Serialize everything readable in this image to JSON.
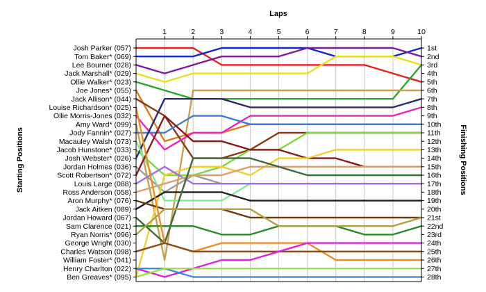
{
  "chart_data": {
    "type": "line",
    "title": "",
    "xlabel": "Laps",
    "ylabel_left": "Starting Positions",
    "ylabel_right": "Finishing Positions",
    "x": [
      1,
      2,
      3,
      4,
      5,
      6,
      7,
      8,
      9,
      10
    ],
    "xlim": [
      0,
      10
    ],
    "ylim": [
      1,
      28
    ],
    "y_reversed": true,
    "grid": "vertical",
    "drivers": [
      "Josh Parker (057)",
      "Tom Baker* (069)",
      "Lee Bourner (028)",
      "Jack Marshall* (029)",
      "Ollie Walker* (023)",
      "Joe Jones* (055)",
      "Jack Allison* (044)",
      "Louise Richardson* (025)",
      "Ollie Morris-Jones (032)",
      "Amy Ward* (099)",
      "Jody Fannin* (027)",
      "Macauley Walsh (073)",
      "Jacob Hunstone* (033)",
      "Josh Webster* (026)",
      "Jordan Holmes (036)",
      "Scott Robertson* (072)",
      "Louis Large (088)",
      "Ross Anderson (058)",
      "Aron Murphy* (076)",
      "Jack Aitken (089)",
      "Jordan Howard (067)",
      "Sam Clarence (021)",
      "Ryan Norris* (096)",
      "George Wright (030)",
      "Charles Watson (098)",
      "William Foster* (041)",
      "Henry Charlton (022)",
      "Ben Greaves* (095)"
    ],
    "finishing_labels": [
      "1st",
      "2nd",
      "3rd",
      "4th",
      "5th",
      "6th",
      "7th",
      "8th",
      "9th",
      "10th",
      "11th",
      "12th",
      "13th",
      "14th",
      "15th",
      "16th",
      "17th",
      "18th",
      "19th",
      "20th",
      "21st",
      "22nd",
      "23rd",
      "24th",
      "25th",
      "26th",
      "27th",
      "28th"
    ],
    "series": [
      {
        "color": "#e8201c",
        "positions": [
          1,
          1,
          1,
          3,
          3,
          3,
          3,
          3,
          3,
          4,
          5
        ]
      },
      {
        "color": "#1428c8",
        "positions": [
          2,
          2,
          2,
          1,
          1,
          1,
          1,
          2,
          2,
          2,
          1
        ]
      },
      {
        "color": "#7a1c9c",
        "positions": [
          3,
          4,
          3,
          2,
          2,
          2,
          1,
          1,
          1,
          1,
          2
        ]
      },
      {
        "color": "#e6e020",
        "positions": [
          4,
          5,
          4,
          4,
          4,
          4,
          4,
          2,
          2,
          2,
          3
        ]
      },
      {
        "color": "#2aa82a",
        "positions": [
          5,
          6,
          7,
          7,
          7,
          7,
          7,
          7,
          7,
          7,
          3
        ]
      },
      {
        "color": "#e07a20",
        "positions": [
          6,
          12,
          11,
          11,
          10,
          10,
          10,
          10,
          10,
          10,
          10
        ]
      },
      {
        "color": "#c8a050",
        "positions": [
          10,
          26,
          6,
          6,
          6,
          6,
          6,
          6,
          6,
          6,
          6
        ]
      },
      {
        "color": "#8b3a0f",
        "positions": [
          7,
          9,
          14,
          14,
          13,
          11,
          11,
          11,
          11,
          11,
          11
        ]
      },
      {
        "color": "#f020c0",
        "positions": [
          9,
          13,
          11,
          11,
          9,
          9,
          9,
          9,
          9,
          9,
          8
        ]
      },
      {
        "color": "#3a7ad8",
        "positions": [
          11,
          11,
          9,
          9,
          10,
          10,
          10,
          10,
          10,
          10,
          10
        ]
      },
      {
        "color": "#7ad840",
        "positions": [
          13,
          16,
          16,
          15,
          13,
          13,
          11,
          11,
          11,
          11,
          11
        ]
      },
      {
        "color": "#9c9c9c",
        "positions": [
          15,
          18,
          16,
          17,
          17,
          17,
          17,
          17,
          17,
          17,
          17
        ]
      },
      {
        "color": "#2c2c6c",
        "positions": [
          14,
          7,
          7,
          7,
          8,
          8,
          8,
          8,
          8,
          8,
          7
        ]
      },
      {
        "color": "#80e8a0",
        "positions": [
          12,
          19,
          19,
          19,
          17,
          17,
          17,
          17,
          17,
          17,
          17
        ]
      },
      {
        "color": "#8a1a1a",
        "positions": [
          16,
          9,
          12,
          12,
          13,
          13,
          14,
          14,
          15,
          15,
          15
        ]
      },
      {
        "color": "#f0d030",
        "positions": [
          28,
          16,
          15,
          15,
          16,
          14,
          14,
          13,
          13,
          13,
          13
        ]
      },
      {
        "color": "#a070e0",
        "positions": [
          17,
          15,
          17,
          17,
          17,
          17,
          17,
          17,
          17,
          17,
          17
        ]
      },
      {
        "color": "#d8a070",
        "positions": [
          18,
          17,
          16,
          16,
          15,
          15,
          15,
          15,
          15,
          15,
          15
        ]
      },
      {
        "color": "#202020",
        "positions": [
          20,
          18,
          18,
          18,
          19,
          19,
          19,
          19,
          19,
          19,
          19
        ]
      },
      {
        "color": "#6a3a10",
        "positions": [
          19,
          20,
          20,
          20,
          21,
          21,
          21,
          21,
          21,
          21,
          21
        ]
      },
      {
        "color": "#3c6a3c",
        "positions": [
          21,
          24,
          14,
          14,
          14,
          15,
          16,
          16,
          16,
          16,
          16
        ]
      },
      {
        "color": "#2a8a2a",
        "positions": [
          22,
          22,
          22,
          23,
          23,
          22,
          22,
          22,
          23,
          23,
          22
        ]
      },
      {
        "color": "#b0a040",
        "positions": [
          23,
          20,
          20,
          20,
          20,
          22,
          22,
          22,
          22,
          22,
          21
        ]
      },
      {
        "color": "#f08a20",
        "positions": [
          8,
          24,
          25,
          24,
          24,
          24,
          24,
          26,
          26,
          26,
          26
        ]
      },
      {
        "color": "#8a4a1a",
        "positions": [
          25,
          24,
          25,
          25,
          25,
          25,
          25,
          25,
          25,
          25,
          25
        ]
      },
      {
        "color": "#e020e0",
        "positions": [
          27,
          28,
          27,
          26,
          26,
          25,
          24,
          24,
          24,
          24,
          24
        ]
      },
      {
        "color": "#3a8ae0",
        "positions": [
          27,
          27,
          28,
          28,
          28,
          28,
          28,
          28,
          28,
          28,
          28
        ]
      },
      {
        "color": "#a0e040",
        "positions": [
          28,
          27,
          27,
          27,
          27,
          27,
          27,
          27,
          27,
          27,
          27
        ]
      }
    ]
  }
}
